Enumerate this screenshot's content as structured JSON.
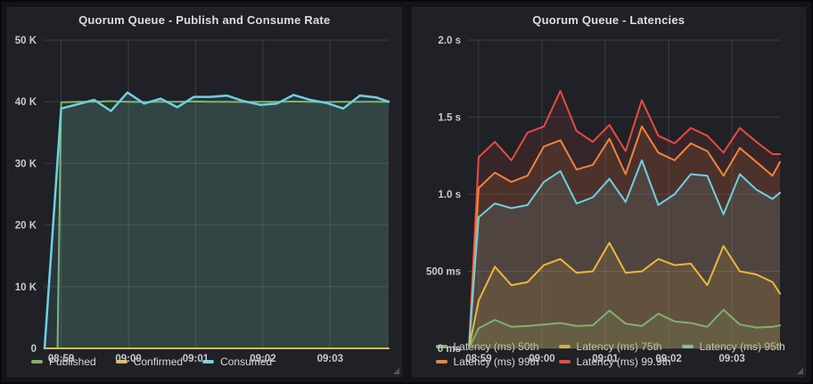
{
  "page": {
    "background_color": "#131419",
    "panel_background_color": "#202126",
    "grid_color": "rgba(255,255,255,0.12)",
    "axis_text_color": "#c9cacc",
    "title_text_color": "#dcdde0"
  },
  "chart_data": [
    {
      "type": "area",
      "title": "Quorum Queue - Publish and Consume Rate",
      "ylim": [
        0,
        50000
      ],
      "y_ticks": [
        {
          "value": 50000,
          "label": "50 K"
        },
        {
          "value": 40000,
          "label": "40 K"
        },
        {
          "value": 30000,
          "label": "30 K"
        },
        {
          "value": 20000,
          "label": "20 K"
        },
        {
          "value": 10000,
          "label": "10 K"
        },
        {
          "value": 0,
          "label": "0"
        }
      ],
      "x_ticks": [
        {
          "f": 0.0506,
          "label": "08:59"
        },
        {
          "f": 0.2456,
          "label": "09:00"
        },
        {
          "f": 0.4405,
          "label": "09:01"
        },
        {
          "f": 0.6354,
          "label": "09:02"
        },
        {
          "f": 0.8304,
          "label": "09:03"
        }
      ],
      "fill_opacity": 0.12,
      "grid": true,
      "legend_position": "bottom-left",
      "series": [
        {
          "name": "Published",
          "color": "#7EB26D",
          "line_width": 2,
          "x": [
            0.04,
            0.0506,
            0.0987,
            0.1468,
            0.1949,
            0.243,
            0.2911,
            0.3392,
            0.3873,
            0.4354,
            0.4835,
            0.5316,
            0.5797,
            0.6278,
            0.6759,
            0.724,
            0.7721,
            0.8202,
            0.8683,
            0.9164,
            0.9645,
            1.0
          ],
          "values": [
            0,
            39900,
            40000,
            40000,
            40100,
            40000,
            39950,
            40000,
            40000,
            40050,
            40000,
            40000,
            39950,
            40000,
            40000,
            40050,
            40000,
            39950,
            40000,
            40000,
            40000,
            40000
          ]
        },
        {
          "name": "Confirmed",
          "color": "#EAB839",
          "line_width": 2,
          "x": [
            0.0025,
            1.0
          ],
          "values": [
            0,
            0
          ]
        },
        {
          "name": "Consumed",
          "color": "#6ED0E0",
          "line_width": 2.5,
          "x": [
            0.0025,
            0.0506,
            0.0987,
            0.1468,
            0.1949,
            0.243,
            0.2911,
            0.3392,
            0.3873,
            0.4354,
            0.4835,
            0.5316,
            0.5797,
            0.6278,
            0.6759,
            0.724,
            0.7721,
            0.8202,
            0.8683,
            0.9164,
            0.9645,
            1.0
          ],
          "values": [
            0,
            38900,
            39600,
            40300,
            38500,
            41500,
            39700,
            40500,
            39100,
            40800,
            40800,
            41000,
            40100,
            39500,
            39700,
            41100,
            40300,
            39800,
            38900,
            41000,
            40700,
            40000
          ]
        }
      ],
      "legend_rows": [
        [
          "Published",
          "Confirmed",
          "Consumed"
        ]
      ]
    },
    {
      "type": "area",
      "title": "Quorum Queue - Latencies",
      "ylim": [
        0,
        2.0
      ],
      "y_ticks": [
        {
          "value": 2.0,
          "label": "2.0 s"
        },
        {
          "value": 1.5,
          "label": "1.5 s"
        },
        {
          "value": 1.0,
          "label": "1.0 s"
        },
        {
          "value": 0.5,
          "label": "500 ms"
        },
        {
          "value": 0,
          "label": "0 ms"
        }
      ],
      "x_ticks": [
        {
          "f": 0.034,
          "label": "08:59"
        },
        {
          "f": 0.237,
          "label": "09:00"
        },
        {
          "f": 0.44,
          "label": "09:01"
        },
        {
          "f": 0.643,
          "label": "09:02"
        },
        {
          "f": 0.846,
          "label": "09:03"
        }
      ],
      "fill_opacity": 0.12,
      "grid": true,
      "legend_position": "bottom-left",
      "series": [
        {
          "name": "Latency (ms) 99.9th",
          "color": "#E24D42",
          "line_width": 2,
          "x": [
            0.003,
            0.034,
            0.086,
            0.139,
            0.191,
            0.243,
            0.296,
            0.348,
            0.4,
            0.453,
            0.505,
            0.557,
            0.61,
            0.662,
            0.714,
            0.767,
            0.819,
            0.871,
            0.924,
            0.976,
            1.0
          ],
          "values": [
            0,
            1.24,
            1.34,
            1.22,
            1.4,
            1.44,
            1.67,
            1.41,
            1.34,
            1.45,
            1.28,
            1.61,
            1.38,
            1.33,
            1.43,
            1.38,
            1.27,
            1.43,
            1.34,
            1.26,
            1.26
          ]
        },
        {
          "name": "Latency (ms) 99th",
          "color": "#EF843C",
          "line_width": 2,
          "x": [
            0.003,
            0.034,
            0.086,
            0.139,
            0.191,
            0.243,
            0.296,
            0.348,
            0.4,
            0.453,
            0.505,
            0.557,
            0.61,
            0.662,
            0.714,
            0.767,
            0.819,
            0.871,
            0.924,
            0.976,
            1.0
          ],
          "values": [
            0,
            1.04,
            1.14,
            1.08,
            1.12,
            1.31,
            1.35,
            1.16,
            1.19,
            1.36,
            1.13,
            1.44,
            1.27,
            1.22,
            1.33,
            1.28,
            1.12,
            1.3,
            1.21,
            1.12,
            1.21
          ]
        },
        {
          "name": "Latency (ms) 95th",
          "color": "#6ED0E0",
          "line_width": 2,
          "x": [
            0.003,
            0.034,
            0.086,
            0.139,
            0.191,
            0.243,
            0.296,
            0.348,
            0.4,
            0.453,
            0.505,
            0.557,
            0.61,
            0.662,
            0.714,
            0.767,
            0.819,
            0.871,
            0.924,
            0.976,
            1.0
          ],
          "values": [
            0,
            0.85,
            0.94,
            0.91,
            0.93,
            1.08,
            1.15,
            0.94,
            0.98,
            1.1,
            0.95,
            1.22,
            0.93,
            1.0,
            1.13,
            1.12,
            0.87,
            1.13,
            1.03,
            0.97,
            1.01
          ]
        },
        {
          "name": "Latency (ms) 75th",
          "color": "#EAB839",
          "line_width": 2,
          "x": [
            0.003,
            0.034,
            0.086,
            0.139,
            0.191,
            0.243,
            0.296,
            0.348,
            0.4,
            0.453,
            0.505,
            0.557,
            0.61,
            0.662,
            0.714,
            0.767,
            0.819,
            0.871,
            0.924,
            0.976,
            1.0
          ],
          "values": [
            0,
            0.31,
            0.53,
            0.41,
            0.43,
            0.54,
            0.58,
            0.49,
            0.5,
            0.685,
            0.49,
            0.5,
            0.58,
            0.54,
            0.55,
            0.41,
            0.665,
            0.5,
            0.48,
            0.43,
            0.355
          ]
        },
        {
          "name": "Latency (ms) 50th",
          "color": "#7EB26D",
          "line_width": 2,
          "x": [
            0.003,
            0.034,
            0.086,
            0.139,
            0.191,
            0.243,
            0.296,
            0.348,
            0.4,
            0.453,
            0.505,
            0.557,
            0.61,
            0.662,
            0.714,
            0.767,
            0.819,
            0.871,
            0.924,
            0.976,
            1.0
          ],
          "values": [
            0,
            0.13,
            0.185,
            0.14,
            0.145,
            0.155,
            0.165,
            0.145,
            0.15,
            0.245,
            0.16,
            0.145,
            0.225,
            0.175,
            0.165,
            0.14,
            0.25,
            0.155,
            0.135,
            0.14,
            0.15
          ]
        }
      ],
      "legend_rows": [
        [
          "Latency (ms) 50th",
          "Latency (ms) 75th",
          "Latency (ms) 95th"
        ],
        [
          "Latency (ms) 99th",
          "Latency (ms) 99.9th"
        ]
      ]
    }
  ]
}
